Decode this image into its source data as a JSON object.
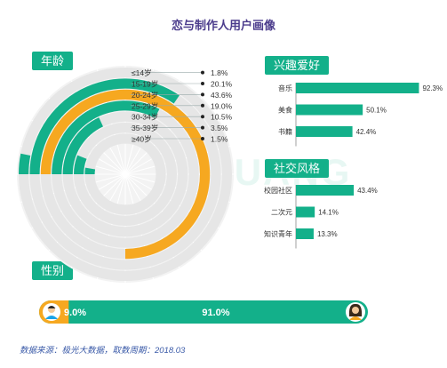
{
  "title": "恋与制作人用户画像",
  "watermark": "JIGUANG",
  "colors": {
    "accent": "#13b08a",
    "orange": "#f6a820",
    "title": "#4b3c8c"
  },
  "sections": {
    "age": "年龄",
    "interest": "兴趣爱好",
    "social": "社交风格",
    "gender": "性别"
  },
  "chart_data": [
    {
      "type": "radial-bar",
      "title": "年龄",
      "categories": [
        "≤14岁",
        "15-19岁",
        "20-24岁",
        "25-29岁",
        "30-34岁",
        "35-39岁",
        "≥40岁"
      ],
      "values": [
        1.8,
        20.1,
        43.6,
        19.0,
        10.5,
        3.5,
        1.5
      ],
      "labels": [
        "1.8%",
        "20.1%",
        "43.6%",
        "19.0%",
        "10.5%",
        "3.5%",
        "1.5%"
      ],
      "highlight": "20-24岁",
      "max": 43.6
    },
    {
      "type": "bar",
      "title": "兴趣爱好",
      "categories": [
        "音乐",
        "美食",
        "书籍"
      ],
      "values": [
        92.3,
        50.1,
        42.4
      ],
      "labels": [
        "92.3%",
        "50.1%",
        "42.4%"
      ],
      "xlim": [
        0,
        100
      ]
    },
    {
      "type": "bar",
      "title": "社交风格",
      "categories": [
        "校园社区",
        "二次元",
        "知识青年"
      ],
      "values": [
        43.4,
        14.1,
        13.3
      ],
      "labels": [
        "43.4%",
        "14.1%",
        "13.3%"
      ],
      "xlim": [
        0,
        100
      ]
    },
    {
      "type": "stacked-bar",
      "title": "性别",
      "categories": [
        "男",
        "女"
      ],
      "values": [
        9.0,
        91.0
      ],
      "labels": [
        "9.0%",
        "91.0%"
      ]
    }
  ],
  "footer": "数据来源：极光大数据，取数周期：2018.03"
}
